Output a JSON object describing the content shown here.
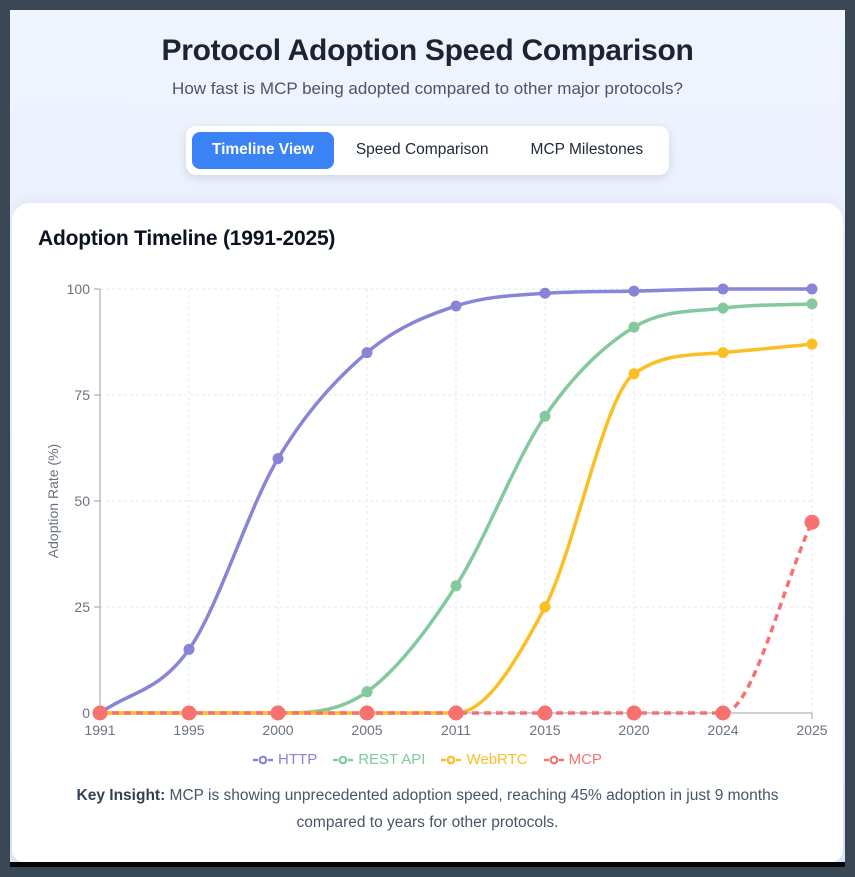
{
  "header": {
    "title": "Protocol Adoption Speed Comparison",
    "subtitle": "How fast is MCP being adopted compared to other major protocols?"
  },
  "tabs": [
    {
      "label": "Timeline View",
      "active": true
    },
    {
      "label": "Speed Comparison",
      "active": false
    },
    {
      "label": "MCP Milestones",
      "active": false
    }
  ],
  "chart_section": {
    "heading": "Adoption Timeline (1991-2025)"
  },
  "insight": {
    "label": "Key Insight:",
    "text": "MCP is showing unprecedented adoption speed, reaching 45% adoption in just 9 months compared to years for other protocols."
  },
  "colors": {
    "accent_blue": "#3b82f6",
    "frame": "#3a4754",
    "http": "#8884d8",
    "rest_api": "#82ca9d",
    "webrtc": "#fbbf24",
    "mcp": "#f87171",
    "grid": "#e4e7ee",
    "axis": "#9aa1ad",
    "tick_text": "#6b7280"
  },
  "chart_data": {
    "type": "line",
    "title": "Adoption Timeline (1991-2025)",
    "xlabel": "",
    "ylabel": "Adoption Rate (%)",
    "ylim": [
      0,
      100
    ],
    "yticks": [
      0,
      25,
      50,
      75,
      100
    ],
    "grid": true,
    "legend_position": "bottom",
    "categories": [
      "1991",
      "1995",
      "2000",
      "2005",
      "2011",
      "2015",
      "2020",
      "2024",
      "2025"
    ],
    "series": [
      {
        "name": "HTTP",
        "color": "#8884d8",
        "style": "solid",
        "values": [
          0,
          15,
          60,
          85,
          96,
          99,
          99.5,
          100,
          100
        ]
      },
      {
        "name": "REST API",
        "color": "#82ca9d",
        "style": "solid",
        "values": [
          0,
          0,
          0,
          5,
          30,
          70,
          91,
          95.5,
          96.5
        ]
      },
      {
        "name": "WebRTC",
        "color": "#fbbf24",
        "style": "solid",
        "values": [
          0,
          0,
          0,
          0,
          0,
          25,
          80,
          85,
          87
        ]
      },
      {
        "name": "MCP",
        "color": "#f87171",
        "style": "dashed",
        "values": [
          0,
          0,
          0,
          0,
          0,
          0,
          0,
          0,
          45
        ]
      }
    ]
  }
}
